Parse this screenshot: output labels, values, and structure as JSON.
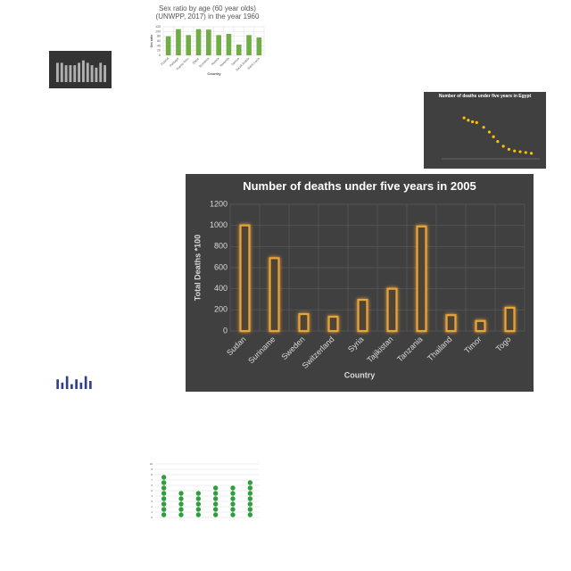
{
  "chart_data": [
    {
      "type": "bar",
      "title": "Number of deaths under five years in 2005",
      "categories": [
        "Sudan",
        "Suriname",
        "Sweden",
        "Switzerland",
        "Syria",
        "Tajikistan",
        "Tanzania",
        "Thailand",
        "Timor",
        "Togo"
      ],
      "values": [
        1000,
        690,
        160,
        135,
        295,
        400,
        990,
        150,
        95,
        220
      ],
      "color": "#e8a33a",
      "ylim": [
        0,
        1200
      ],
      "yticks": [
        0,
        200,
        400,
        600,
        800,
        1000,
        1200
      ],
      "xlabel": "Country",
      "ylabel": "Total Deaths *100",
      "grid": true
    },
    {
      "type": "bar",
      "title": "Sex ratio by age (60 year olds) (UNWPP, 2017) in the year 1960",
      "categories": [
        "Poland",
        "Portugal",
        "Puerto Rico",
        "Qatar",
        "Romania",
        "Russia",
        "Rwanda",
        "Samoa",
        "Saudi Arabia",
        "Saint Lucia"
      ],
      "values": [
        80,
        110,
        85,
        110,
        108,
        85,
        90,
        45,
        85,
        75
      ],
      "color": "#70ad47",
      "ylim": [
        0,
        120
      ],
      "yticks": [
        0,
        20,
        40,
        60,
        80,
        100,
        120
      ],
      "xlabel": "Country",
      "ylabel": "Sex ratio",
      "grid": true
    },
    {
      "type": "scatter",
      "title": "Number of deaths under five years in Egypt",
      "x": [
        1966,
        1969,
        1972,
        1975,
        1980,
        1984,
        1987,
        1990,
        1994,
        1998,
        2002,
        2006,
        2010,
        2014
      ],
      "values": [
        260000,
        245000,
        235000,
        230000,
        200000,
        170000,
        140000,
        110000,
        80000,
        60000,
        50000,
        45000,
        40000,
        35000
      ],
      "color": "#ffc000",
      "xlim": [
        1950,
        2020
      ],
      "ylim": [
        0,
        300000
      ],
      "grid": true
    },
    {
      "type": "bar",
      "values": [
        8,
        8,
        7,
        7,
        7,
        8,
        9,
        8,
        7,
        6,
        8,
        7
      ],
      "color": "#b0b0b0",
      "ylim": [
        0,
        10
      ]
    },
    {
      "type": "bar",
      "values": [
        6,
        4,
        8,
        3,
        6,
        4,
        8,
        5
      ],
      "color": "#2f3f8f",
      "ylim": [
        0,
        10
      ]
    },
    {
      "type": "dot",
      "values": [
        8,
        5,
        5,
        6,
        6,
        7
      ],
      "color": "#2e9e3e",
      "ylim": [
        0,
        10
      ],
      "yticks": [
        0,
        1,
        2,
        3,
        4,
        5,
        6,
        7,
        8,
        9,
        10
      ],
      "grid": true
    }
  ]
}
